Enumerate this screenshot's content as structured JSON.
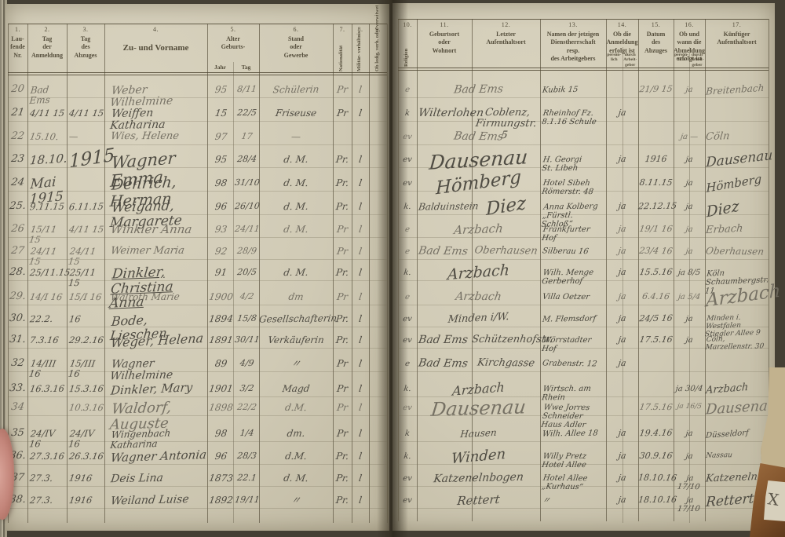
{
  "colors": {
    "paper": "#d0cab5",
    "print_ink": "#544d3b",
    "hand_ink": "#45423a",
    "hand_pencil": "#6f6a5e",
    "background": "#443f34"
  },
  "header": {
    "left": [
      {
        "num": "1.",
        "label": "Lau-\nfende\nNr."
      },
      {
        "num": "2.",
        "label": "Tag\nder\nAnmeldung"
      },
      {
        "num": "3.",
        "label": "Tag\ndes\nAbzuges"
      },
      {
        "num": "4.",
        "label": "Zu- und Vorname"
      },
      {
        "num": "5.",
        "label": "Alter\nGeburts-",
        "sub": [
          "Jahr",
          "Tag"
        ]
      },
      {
        "num": "6.",
        "label": "Stand\noder\nGewerbe"
      },
      {
        "num": "7.",
        "label": "Nationalität"
      },
      {
        "num": "8.",
        "label": "Militär-\nverhältnis"
      },
      {
        "num": "9.",
        "label": "Ob ledig, verh.\noder verwitwet"
      }
    ],
    "right": [
      {
        "num": "10.",
        "label": "Religion"
      },
      {
        "num": "11.",
        "label": "Geburtsort\noder\nWohnort"
      },
      {
        "num": "12.",
        "label": "Letzter\nAufenthaltsort"
      },
      {
        "num": "13.",
        "label": "Namen der jetzigen\nDienstherrschaft\nresp.\ndes Arbeitgebers"
      },
      {
        "num": "14.",
        "label": "Ob die\nAnmeldung\nerfolgt ist",
        "sub": [
          "persön-\nlich",
          "durch\nArbeit-\ngeber"
        ]
      },
      {
        "num": "15.",
        "label": "Datum\ndes\nAbzuges"
      },
      {
        "num": "16.",
        "label": "Ob und\nwann die\nAbmeldung\nerfolgt ist",
        "sub": [
          "persön-\nlich",
          "durch\nArbeit-\ngeber"
        ]
      },
      {
        "num": "17.",
        "label": "Künftiger\nAufenthaltsort"
      }
    ]
  },
  "rows": [
    {
      "nr": "20",
      "anm": "Bad Ems",
      "abz": "",
      "name": "Weber Wilhelmine",
      "jahr": "95",
      "tag": "8/11",
      "stand": "Schülerin",
      "nat": "Pr",
      "fam": "l",
      "rel": "e",
      "geb": "Bad Ems",
      "letzt": "",
      "dienst": [
        "Kubik 15"
      ],
      "anmart": "",
      "datum": "21/9 15",
      "abm": "ja",
      "kuenf": "Breitenbach"
    },
    {
      "nr": "21",
      "anm": "4/11 15",
      "abz": "4/11 15",
      "name": "Weiffen Katharina",
      "jahr": "15",
      "tag": "22/5",
      "stand": "Friseuse",
      "nat": "Pr",
      "fam": "l",
      "rel": "k",
      "geb": "Wilterlohen",
      "letzt": "Coblenz, Firmungstr. 5",
      "dienst": [
        "Rheinhof Fz.",
        "8.1.16 Schule"
      ],
      "anmart": "ja",
      "datum": "",
      "abm": "",
      "kuenf": ""
    },
    {
      "nr": "22",
      "anm": "15.10.",
      "abz": "—",
      "name": "Wies, Helene",
      "jahr": "97",
      "tag": "17",
      "stand": "—",
      "nat": "",
      "fam": "",
      "rel": "ev",
      "geb": "Bad Ems",
      "letzt": "",
      "dienst": [],
      "anmart": "",
      "datum": "",
      "abm": "ja  —",
      "kuenf": "Cöln"
    },
    {
      "nr": "23",
      "anm": "18.10.",
      "abz": "1915",
      "name": "Wagner Emma",
      "jahr": "95",
      "tag": "28/4",
      "stand": "d. M.",
      "nat": "Pr.",
      "fam": "l",
      "rel": "ev",
      "geb": "Dausenau",
      "letzt": "",
      "dienst": [
        "H. Georgi",
        "St. Libeh"
      ],
      "anmart": "ja",
      "datum": "1916",
      "abm": "ja",
      "kuenf": "Dausenau"
    },
    {
      "nr": "24",
      "anm": "Mai 1915",
      "abz": "",
      "name": "Dehrich, Herman",
      "jahr": "98",
      "tag": "31/10",
      "stand": "d. M.",
      "nat": "Pr.",
      "fam": "l",
      "rel": "ev",
      "geb": "Hömberg",
      "letzt": "",
      "dienst": [
        "Hotel Sibeh",
        "Römerstr. 48"
      ],
      "anmart": "",
      "datum": "8.11.15",
      "abm": "ja",
      "kuenf": "Hömberg"
    },
    {
      "nr": "25.",
      "anm": "9.11.15",
      "abz": "6.11.15",
      "name": "Weigand, Margarete",
      "jahr": "96",
      "tag": "26/10",
      "stand": "d. M.",
      "nat": "Pr.",
      "fam": "l",
      "rel": "k.",
      "geb": "Balduinstein",
      "letzt": "Diez",
      "dienst": [
        "Anna Kolberg",
        "„Fürstl. Schloß“"
      ],
      "anmart": "ja",
      "datum": "22.12.15",
      "abm": "ja",
      "kuenf": "Diez"
    },
    {
      "nr": "26",
      "anm": "15/11 15",
      "abz": "4/11 15",
      "name": "Winkler Anna",
      "jahr": "93",
      "tag": "24/11",
      "stand": "d. M.",
      "nat": "Pr",
      "fam": "l",
      "rel": "e",
      "geb": "Arzbach",
      "letzt": "",
      "dienst": [
        "Frankfurter Hof"
      ],
      "anmart": "ja",
      "datum": "19/1 16",
      "abm": "ja",
      "kuenf": "Erbach"
    },
    {
      "nr": "27",
      "anm": "24/11 15",
      "abz": "24/11 15",
      "name": "Weimer Maria",
      "jahr": "92",
      "tag": "28/9",
      "stand": "",
      "nat": "Pr",
      "fam": "l",
      "rel": "e",
      "geb": "Bad Ems",
      "letzt": "Oberhausen",
      "dienst": [
        "Silberau 16"
      ],
      "anmart": "ja",
      "datum": "23/4 16",
      "abm": "ja",
      "kuenf": "Oberhausen"
    },
    {
      "nr": "28.",
      "anm": "25/11.15",
      "abz": "25/11 15",
      "name": "Dinkler, Christina",
      "name2": "Anna",
      "jahr": "91",
      "tag": "20/5",
      "stand": "d. M.",
      "nat": "Pr.",
      "fam": "l",
      "rel": "k.",
      "geb": "Arzbach",
      "letzt": "",
      "dienst": [
        "Wilh. Menge",
        "Gerberhof"
      ],
      "anmart": "ja",
      "datum": "15.5.16",
      "abm": "ja 8/5",
      "kuenf": "Köln",
      "kuenf2": "Schaumbergstr. 11"
    },
    {
      "nr": "29.",
      "anm": "14/I 16",
      "abz": "15/I 16",
      "name": "Walroth Marie",
      "jahr": "1900",
      "tag": "4/2",
      "stand": "dm",
      "nat": "Pr",
      "fam": "l",
      "rel": "e",
      "geb": "Arzbach",
      "letzt": "",
      "dienst": [
        "Villa Oetzer"
      ],
      "anmart": "ja",
      "datum": "6.4.16",
      "abm": "ja 5/4",
      "kuenf": "Arzbach"
    },
    {
      "nr": "30.",
      "anm": "22.2.",
      "abz": "16",
      "name": "Bode, Lieschen",
      "jahr": "1894",
      "tag": "15/8",
      "stand": "Gesellschafterin",
      "nat": "Pr.",
      "fam": "l",
      "rel": "ev",
      "geb": "Minden i/W.",
      "letzt": "",
      "dienst": [
        "M. Flemsdorf"
      ],
      "anmart": "ja",
      "datum": "24/5 16",
      "abm": "ja",
      "kuenf": "Minden i. Westfalen",
      "kuenf2": "Stiegler Allee 9"
    },
    {
      "nr": "31.",
      "anm": "7.3.16",
      "abz": "29.2.16",
      "name": "Weger, Helena",
      "jahr": "1891",
      "tag": "30/11",
      "stand": "Verkäuferin",
      "nat": "Pr.",
      "fam": "l",
      "rel": "ev",
      "geb": "Bad Ems",
      "letzt": "Schützenhofstr.",
      "dienst": [
        "Wörrstadter Hof"
      ],
      "anmart": "ja",
      "datum": "17.5.16",
      "abm": "ja",
      "kuenf": "Cöln, Marzellenstr. 30"
    },
    {
      "nr": "32",
      "anm": "14/III 16",
      "abz": "15/III 16",
      "name": "Wagner Wilhelmine",
      "jahr": "89",
      "tag": "4/9",
      "stand": "〃",
      "nat": "Pr",
      "fam": "l",
      "rel": "e",
      "geb": "Bad Ems",
      "letzt": "Kirchgasse",
      "dienst": [
        "Grabenstr. 12"
      ],
      "anmart": "ja",
      "datum": "",
      "abm": "",
      "kuenf": ""
    },
    {
      "nr": "33.",
      "anm": "16.3.16",
      "abz": "15.3.16",
      "name": "Dinkler, Mary",
      "jahr": "1901",
      "tag": "3/2",
      "stand": "Magd",
      "nat": "Pr",
      "fam": "l",
      "rel": "k.",
      "geb": "Arzbach",
      "letzt": "",
      "dienst": [
        "Wirtsch. am Rhein"
      ],
      "anmart": "",
      "datum": "",
      "abm": "ja 30/4",
      "kuenf": "Arzbach"
    },
    {
      "nr": "34",
      "anm": "",
      "abz": "10.3.16",
      "name": "Waldorf, Auguste",
      "jahr": "1898",
      "tag": "22/2",
      "stand": "d.M.",
      "nat": "Pr",
      "fam": "l",
      "rel": "ev",
      "geb": "Dausenau",
      "letzt": "",
      "dienst": [
        "Wwe Jorres Schneider",
        "Haus Adler"
      ],
      "anmart": "",
      "datum": "17.5.16",
      "abm": "ja 16/5",
      "kuenf": "Dausenau"
    },
    {
      "nr": "35",
      "anm": "24/IV 16",
      "abz": "24/IV 16",
      "name": "Wingenbach Katharina",
      "jahr": "98",
      "tag": "1/4",
      "stand": "dm.",
      "nat": "Pr",
      "fam": "l",
      "rel": "k",
      "geb": "Hausen",
      "letzt": "",
      "dienst": [
        "Wilh. Allee 18"
      ],
      "anmart": "ja",
      "datum": "19.4.16",
      "abm": "ja",
      "kuenf": "Düsseldorf"
    },
    {
      "nr": "36.",
      "anm": "27.3.16",
      "abz": "26.3.16",
      "name": "Wagner Antonia",
      "jahr": "96",
      "tag": "28/3",
      "stand": "d.M.",
      "nat": "Pr.",
      "fam": "l",
      "rel": "k.",
      "geb": "Winden",
      "letzt": "",
      "dienst": [
        "Willy Pretz",
        "Hotel Allee"
      ],
      "anmart": "ja",
      "datum": "30.9.16",
      "abm": "ja",
      "kuenf": "Nassau"
    },
    {
      "nr": "37",
      "anm": "27.3.",
      "abz": "1916",
      "name": "Deis Lina",
      "jahr": "1873",
      "tag": "22.1",
      "stand": "d. M.",
      "nat": "Pr.",
      "fam": "l",
      "rel": "ev",
      "geb": "Katzenelnbogen",
      "letzt": "",
      "dienst": [
        "Hotel Allee",
        "„Kurhaus“"
      ],
      "anmart": "ja",
      "datum": "18.10.16",
      "abm": "ja 17/10",
      "kuenf": "Katzenelnbogen"
    },
    {
      "nr": "38.",
      "anm": "27.3.",
      "abz": "1916",
      "name": "Weiland Luise",
      "jahr": "1892",
      "tag": "19/11",
      "stand": "〃",
      "nat": "Pr.",
      "fam": "l",
      "rel": "ev",
      "geb": "Rettert",
      "letzt": "",
      "dienst": [
        "〃"
      ],
      "anmart": "ja",
      "datum": "18.10.16",
      "abm": "ja 17/10",
      "kuenf": "Rettert"
    }
  ],
  "artifacts": {
    "corner_mark": "X"
  }
}
